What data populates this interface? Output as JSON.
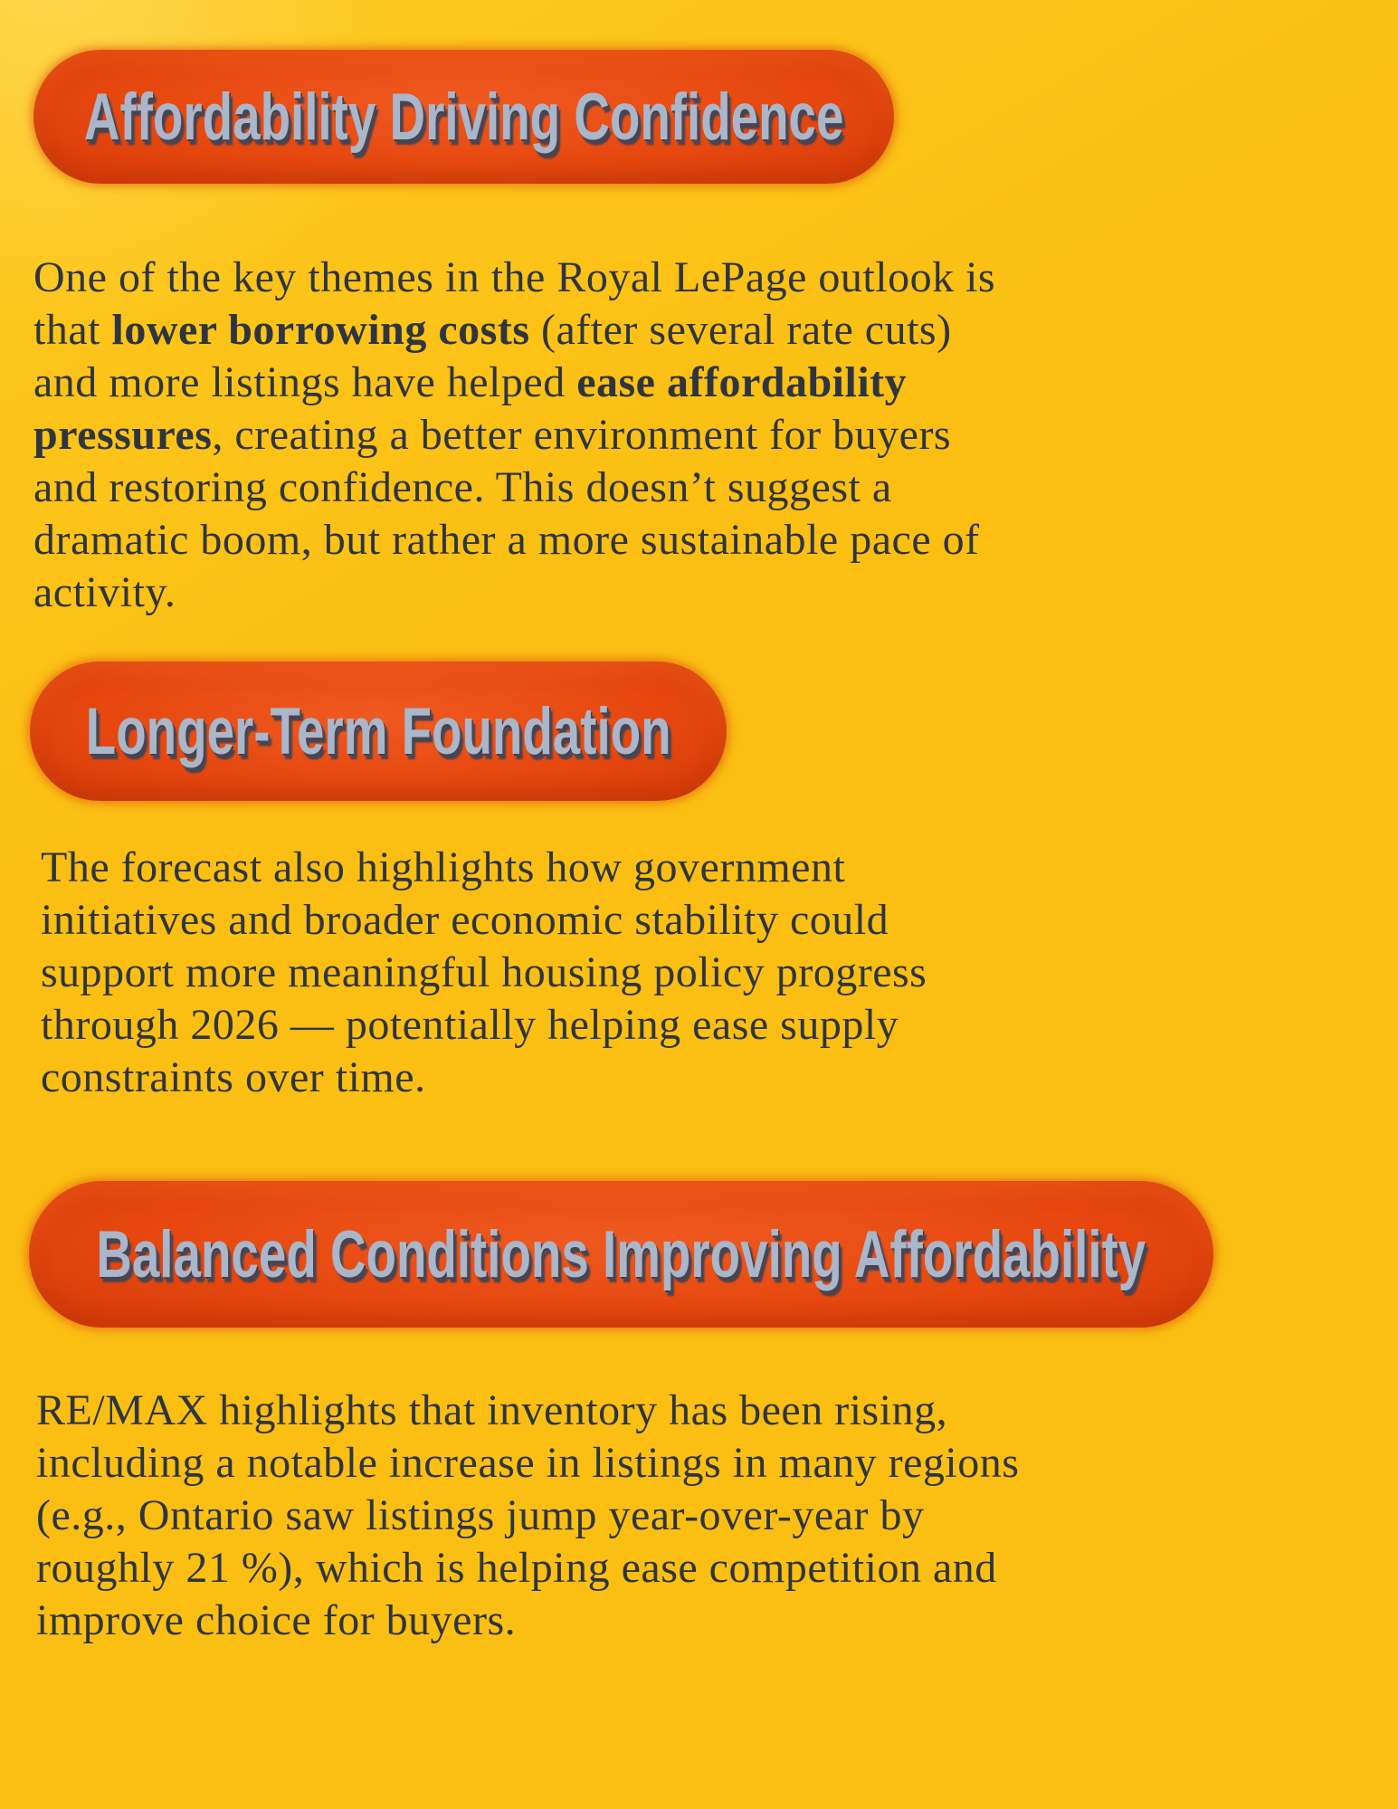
{
  "colors": {
    "background_yellow": "#fbbf13",
    "background_highlight": "#ffd850",
    "pill_orange": "#e6480f",
    "header_text": "#aab6c9",
    "header_text_shadow": "#4a4450",
    "body_text": "#2f353e"
  },
  "sections": [
    {
      "header": "Affordability Driving Confidence",
      "lines": [
        [
          {
            "text": "One of the key themes in the Royal LePage outlook is",
            "bold": false
          }
        ],
        [
          {
            "text": "that ",
            "bold": false
          },
          {
            "text": "lower borrowing costs",
            "bold": true
          },
          {
            "text": " (after several rate cuts)",
            "bold": false
          }
        ],
        [
          {
            "text": "and more listings have helped ",
            "bold": false
          },
          {
            "text": "ease affordability",
            "bold": true
          }
        ],
        [
          {
            "text": "pressures",
            "bold": true
          },
          {
            "text": ", creating a better environment for buyers",
            "bold": false
          }
        ],
        [
          {
            "text": "and restoring confidence. This doesn’t suggest a",
            "bold": false
          }
        ],
        [
          {
            "text": "dramatic boom, but rather a more sustainable pace of",
            "bold": false
          }
        ],
        [
          {
            "text": "activity.",
            "bold": false
          }
        ]
      ]
    },
    {
      "header": "Longer-Term Foundation",
      "lines": [
        [
          {
            "text": "The forecast also highlights how government",
            "bold": false
          }
        ],
        [
          {
            "text": "initiatives and broader economic stability could",
            "bold": false
          }
        ],
        [
          {
            "text": "support more meaningful housing policy progress",
            "bold": false
          }
        ],
        [
          {
            "text": "through 2026 — potentially helping ease supply",
            "bold": false
          }
        ],
        [
          {
            "text": "constraints over time.",
            "bold": false
          }
        ]
      ]
    },
    {
      "header": "Balanced Conditions Improving Affordability",
      "lines": [
        [
          {
            "text": "RE/MAX highlights that inventory has been rising,",
            "bold": false
          }
        ],
        [
          {
            "text": "including a notable increase in listings in many regions",
            "bold": false
          }
        ],
        [
          {
            "text": "(e.g., Ontario saw listings jump year-over-year by",
            "bold": false
          }
        ],
        [
          {
            "text": "roughly 21 %), which is helping ease competition and",
            "bold": false
          }
        ],
        [
          {
            "text": "improve choice for buyers.",
            "bold": false
          }
        ]
      ]
    }
  ]
}
